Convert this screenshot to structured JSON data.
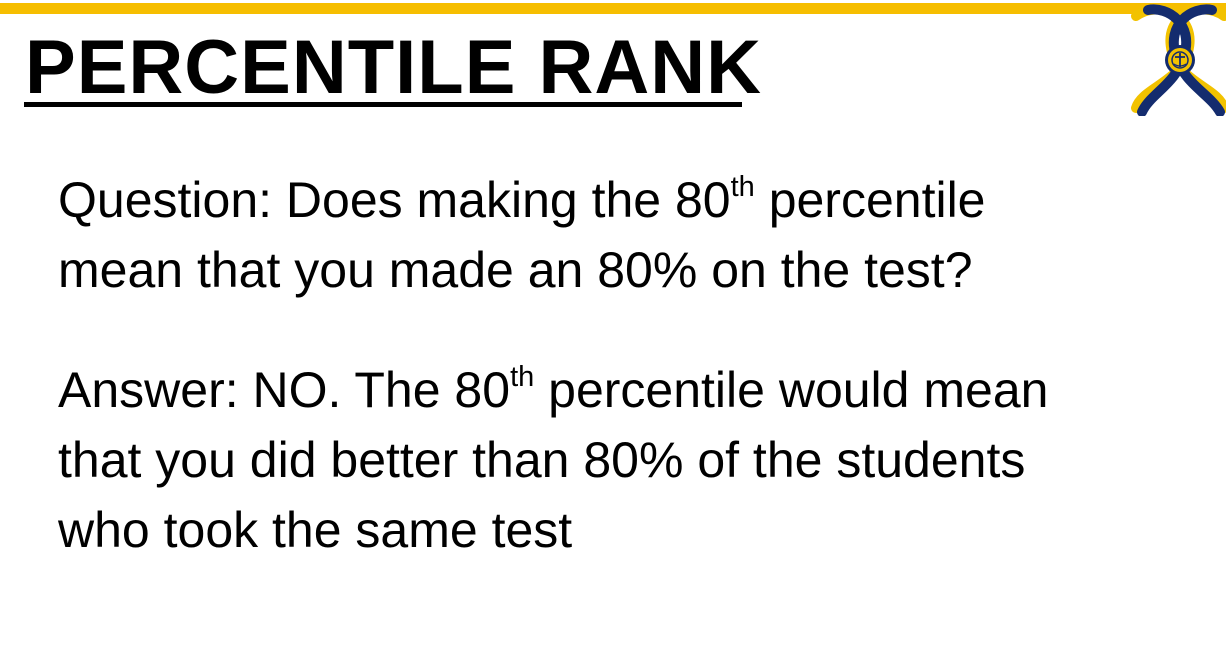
{
  "colors": {
    "accent_bar": "#F6BE00",
    "logo_navy": "#142C6E",
    "logo_gold": "#F2C200",
    "text": "#000000"
  },
  "title": "PERCENTILE RANK",
  "logo": {
    "icon": "university-seal-logo"
  },
  "question": {
    "lead": "Question: Does making the 80",
    "sup": "th",
    "rest": " percentile",
    "line2": "mean that you made an 80% on the test?"
  },
  "answer": {
    "lead": "Answer: NO. The 80",
    "sup": "th",
    "rest": " percentile would mean",
    "line2": "that you did better than 80% of the students",
    "line3": "who took the same test"
  }
}
